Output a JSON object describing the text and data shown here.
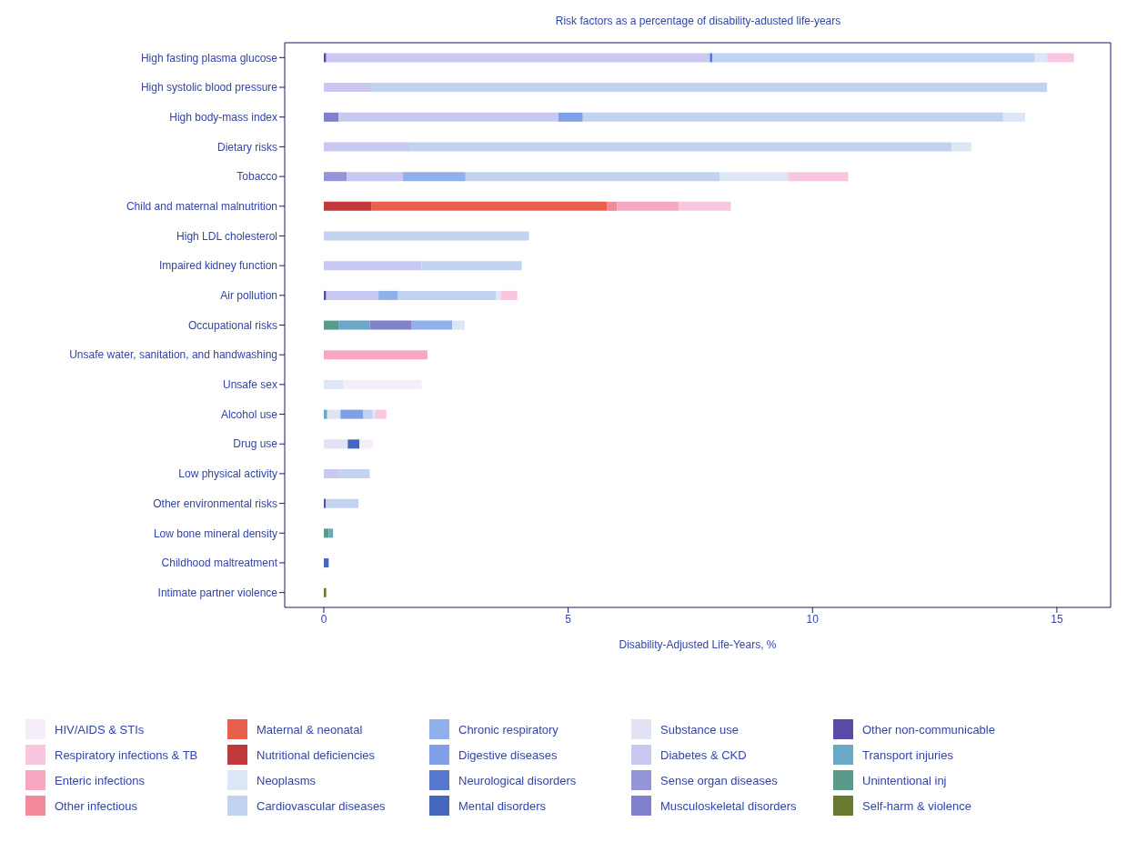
{
  "chart_data": {
    "type": "bar",
    "orientation": "horizontal",
    "stacked": true,
    "title": "Risk factors as a percentage of disability-adusted life-years",
    "xlabel": "Disability-Adjusted Life-Years, %",
    "categories": [
      "High fasting plasma glucose",
      "High systolic blood pressure",
      "High body-mass index",
      "Dietary risks",
      "Tobacco",
      "Child and maternal malnutrition",
      "High LDL cholesterol",
      "Impaired kidney function",
      "Air pollution",
      "Occupational risks",
      "Unsafe water, sanitation, and handwashing",
      "Unsafe sex",
      "Alcohol use",
      "Drug use",
      "Low physical activity",
      "Other environmental risks",
      "Low bone mineral density",
      "Childhood maltreatment",
      "Intimate partner violence"
    ],
    "xlim": [
      -0.8,
      16.1
    ],
    "xticks": [
      0,
      5,
      10,
      15
    ],
    "legend": "bottom",
    "series": [
      {
        "name": "Self-harm & violence",
        "color": "#6a7a30",
        "values": [
          null,
          null,
          null,
          null,
          null,
          null,
          null,
          null,
          null,
          null,
          null,
          null,
          null,
          null,
          null,
          null,
          null,
          null,
          0.05
        ]
      },
      {
        "name": "Unintentional inj",
        "color": "#5a9a8a",
        "values": [
          null,
          null,
          null,
          null,
          null,
          null,
          null,
          null,
          null,
          0.3,
          null,
          null,
          null,
          null,
          null,
          null,
          0.1,
          null,
          null
        ]
      },
      {
        "name": "Transport injuries",
        "color": "#6aa8c8",
        "values": [
          null,
          null,
          null,
          null,
          null,
          null,
          null,
          null,
          null,
          0.64,
          null,
          null,
          0.07,
          null,
          null,
          null,
          0.09,
          null,
          null
        ]
      },
      {
        "name": "Other non-communicable",
        "color": "#5a4aa8",
        "values": [
          0.05,
          null,
          null,
          null,
          null,
          null,
          null,
          null,
          0.05,
          null,
          null,
          null,
          null,
          null,
          null,
          0.04,
          null,
          null,
          null
        ]
      },
      {
        "name": "Musculoskeletal disorders",
        "color": "#8080cc",
        "values": [
          null,
          null,
          0.3,
          null,
          null,
          null,
          null,
          null,
          null,
          0.86,
          null,
          null,
          null,
          null,
          null,
          null,
          null,
          null,
          null
        ]
      },
      {
        "name": "Sense organ diseases",
        "color": "#9494d8",
        "values": [
          null,
          null,
          null,
          null,
          0.47,
          null,
          null,
          null,
          null,
          null,
          null,
          null,
          null,
          null,
          null,
          null,
          null,
          null,
          null
        ]
      },
      {
        "name": "Diabetes & CKD",
        "color": "#c8c8f0",
        "values": [
          7.85,
          0.95,
          4.5,
          1.75,
          1.15,
          null,
          null,
          2.0,
          1.07,
          null,
          null,
          null,
          null,
          null,
          0.3,
          null,
          null,
          null,
          null
        ]
      },
      {
        "name": "Substance use",
        "color": "#e2e2f5",
        "values": [
          null,
          null,
          null,
          null,
          null,
          null,
          null,
          null,
          null,
          null,
          null,
          null,
          0.27,
          0.49,
          null,
          null,
          null,
          null,
          null
        ]
      },
      {
        "name": "Mental disorders",
        "color": "#4466bb",
        "values": [
          null,
          null,
          null,
          null,
          null,
          null,
          null,
          null,
          null,
          null,
          null,
          null,
          null,
          0.24,
          null,
          null,
          null,
          0.1,
          null
        ]
      },
      {
        "name": "Neurological disorders",
        "color": "#5577cc",
        "values": [
          0.05,
          null,
          null,
          null,
          null,
          null,
          null,
          null,
          null,
          null,
          null,
          null,
          null,
          null,
          null,
          null,
          null,
          null,
          null
        ]
      },
      {
        "name": "Digestive diseases",
        "color": "#7fa0e6",
        "values": [
          null,
          null,
          0.5,
          null,
          null,
          null,
          null,
          null,
          null,
          null,
          null,
          null,
          0.47,
          null,
          null,
          null,
          null,
          null,
          null
        ]
      },
      {
        "name": "Chronic respiratory",
        "color": "#8fb0ea",
        "values": [
          null,
          null,
          null,
          null,
          1.28,
          null,
          null,
          null,
          0.4,
          0.83,
          null,
          null,
          null,
          null,
          null,
          null,
          null,
          null,
          null
        ]
      },
      {
        "name": "Cardiovascular diseases",
        "color": "#c2d3f2",
        "values": [
          6.6,
          13.85,
          8.6,
          11.1,
          5.2,
          null,
          4.2,
          2.05,
          2.0,
          null,
          null,
          null,
          0.19,
          null,
          0.64,
          0.67,
          null,
          null,
          null
        ]
      },
      {
        "name": "Neoplasms",
        "color": "#dce6f5",
        "values": [
          0.25,
          null,
          0.45,
          0.4,
          1.4,
          null,
          null,
          null,
          0.1,
          0.25,
          null,
          0.4,
          0.06,
          null,
          null,
          null,
          null,
          null,
          null
        ]
      },
      {
        "name": "Nutritional deficiencies",
        "color": "#c0393b",
        "values": [
          null,
          null,
          null,
          null,
          null,
          0.98,
          null,
          null,
          null,
          null,
          null,
          null,
          null,
          null,
          null,
          null,
          null,
          null,
          null
        ]
      },
      {
        "name": "Maternal & neonatal",
        "color": "#e8604c",
        "values": [
          null,
          null,
          null,
          null,
          null,
          4.82,
          null,
          null,
          null,
          null,
          null,
          null,
          null,
          null,
          null,
          null,
          null,
          null,
          null
        ]
      },
      {
        "name": "Other infectious",
        "color": "#f28a9a",
        "values": [
          null,
          null,
          null,
          null,
          null,
          0.2,
          null,
          null,
          null,
          null,
          null,
          null,
          null,
          null,
          null,
          null,
          null,
          null,
          null
        ]
      },
      {
        "name": "Enteric infections",
        "color": "#f7a8c0",
        "values": [
          null,
          null,
          null,
          null,
          null,
          1.26,
          null,
          null,
          null,
          null,
          2.12,
          null,
          null,
          null,
          null,
          null,
          null,
          null,
          null
        ]
      },
      {
        "name": "Respiratory infections & TB",
        "color": "#f9c6e0",
        "values": [
          0.55,
          null,
          null,
          null,
          1.23,
          1.07,
          null,
          null,
          0.34,
          null,
          null,
          null,
          0.22,
          null,
          null,
          null,
          null,
          null,
          null
        ]
      },
      {
        "name": "HIV/AIDS & STIs",
        "color": "#f5eef8",
        "values": [
          null,
          null,
          null,
          null,
          null,
          null,
          null,
          null,
          null,
          null,
          null,
          1.6,
          null,
          0.27,
          null,
          null,
          null,
          null,
          null
        ]
      }
    ]
  }
}
